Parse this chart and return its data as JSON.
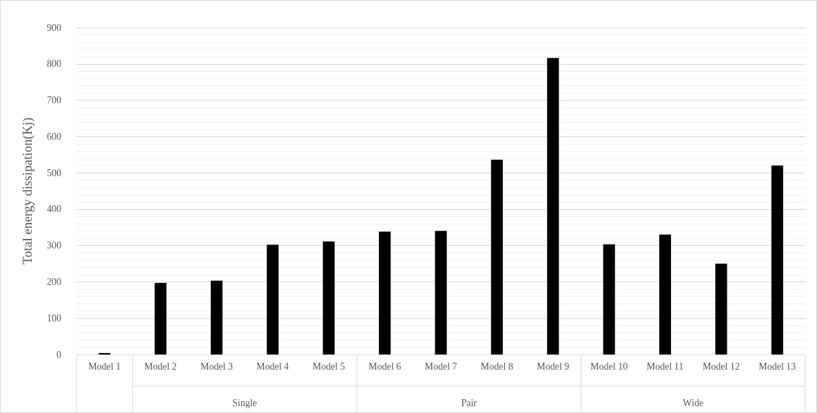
{
  "chart_data": {
    "type": "bar",
    "ylabel": "Total energy dissipation(Kj)",
    "categories": [
      "Model 1",
      "Model 2",
      "Model 3",
      "Model 4",
      "Model 5",
      "Model 6",
      "Model 7",
      "Model 8",
      "Model 9",
      "Model 10",
      "Model 11",
      "Model 12",
      "Model 13"
    ],
    "values": [
      4,
      197,
      203,
      302,
      311,
      338,
      340,
      536,
      816,
      303,
      330,
      250,
      520
    ],
    "color": "#000000",
    "ylim": [
      0,
      900
    ],
    "yticks": [
      0,
      100,
      200,
      300,
      400,
      500,
      600,
      700,
      800,
      900
    ],
    "grid": true,
    "annotations": [
      "Single",
      "Pair",
      "Wide"
    ]
  }
}
